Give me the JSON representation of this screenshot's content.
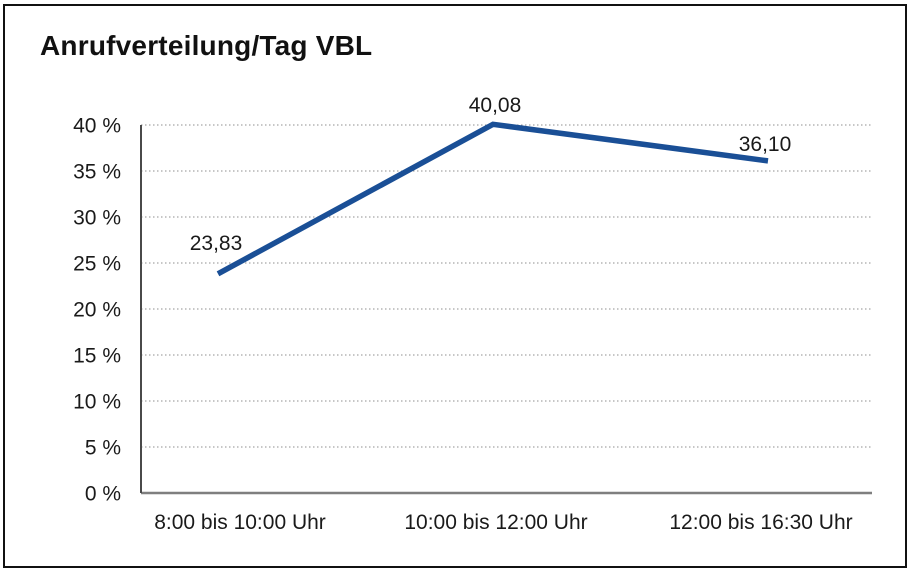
{
  "chart_title": "Anrufverteilung/Tag VBL",
  "chart_data": {
    "type": "line",
    "title": "Anrufverteilung/Tag VBL",
    "categories": [
      "8:00 bis 10:00 Uhr",
      "10:00 bis 12:00 Uhr",
      "12:00 bis 16:30 Uhr"
    ],
    "values": [
      23.83,
      40.08,
      36.1
    ],
    "data_labels": [
      "23,83",
      "40,08",
      "36,10"
    ],
    "ytick_labels": [
      "0 %",
      "5 %",
      "10 %",
      "15 %",
      "20 %",
      "25 %",
      "30 %",
      "35 %",
      "40 %"
    ],
    "ytick_values": [
      0,
      5,
      10,
      15,
      20,
      25,
      30,
      35,
      40
    ],
    "ylim": [
      0,
      40
    ],
    "xlabel": "",
    "ylabel": "",
    "legend": "none",
    "grid": "horizontal-dotted",
    "colors": {
      "series_line": "#1A4F96",
      "gridline": "#8f8f8f",
      "baseline": "#7f7f7f",
      "axis": "#4a4a4a",
      "text": "#1a1a1a",
      "frame": "#111111"
    }
  }
}
